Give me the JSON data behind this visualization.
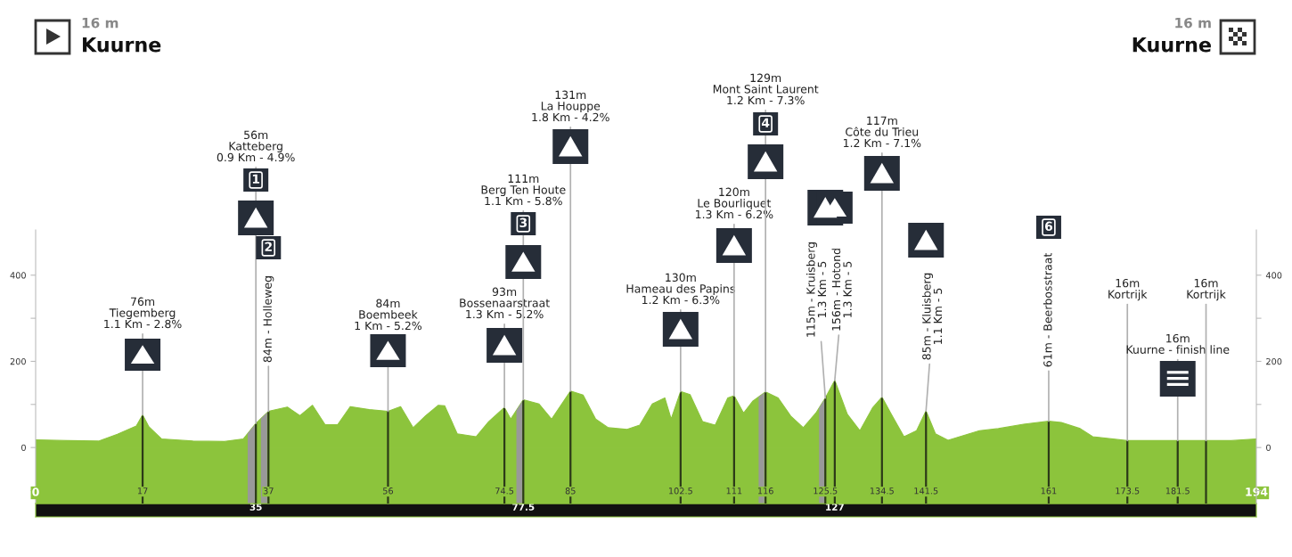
{
  "chart_data": {
    "type": "area",
    "x": [
      0,
      5,
      10,
      13,
      16,
      17,
      18,
      20,
      25,
      30,
      33,
      35,
      37,
      40,
      42,
      44,
      46,
      48,
      50,
      53,
      56,
      58,
      60,
      62,
      64,
      65,
      67,
      70,
      72,
      74.5,
      75.5,
      77.5,
      80,
      82,
      85,
      87,
      89,
      91,
      94,
      96,
      98,
      100,
      101,
      102.5,
      104,
      106,
      108,
      110,
      111,
      112.5,
      114,
      116,
      118,
      120,
      122,
      124,
      125.5,
      127,
      129,
      131,
      133,
      134.5,
      136,
      138,
      140,
      141.5,
      143,
      145,
      150,
      153,
      157,
      161,
      163,
      166,
      168,
      173.5,
      181.5,
      186,
      190,
      194
    ],
    "series": [
      {
        "color": "#8cc43c",
        "values": [
          18,
          16,
          15,
          31,
          50,
          76,
          48,
          20,
          15,
          14,
          20,
          56,
          84,
          94,
          74,
          98,
          53,
          53,
          95,
          88,
          84,
          95,
          46,
          74,
          98,
          97,
          32,
          25,
          60,
          93,
          66,
          111,
          101,
          66,
          131,
          122,
          66,
          46,
          42,
          52,
          101,
          115,
          66,
          130,
          123,
          60,
          52,
          115,
          120,
          80,
          108,
          129,
          115,
          73,
          46,
          80,
          115,
          156,
          77,
          39,
          92,
          117,
          77,
          25,
          39,
          85,
          32,
          17,
          39,
          44,
          54,
          61,
          58,
          44,
          25,
          16,
          16,
          16,
          16,
          20
        ]
      }
    ],
    "xlim": [
      0,
      194
    ],
    "xticks": [
      0,
      17,
      37,
      56,
      74.5,
      85,
      102.5,
      111,
      116,
      125.5,
      134.5,
      141.5,
      161,
      173.5,
      181.5,
      194
    ],
    "x2lim": [
      0,
      194
    ],
    "x2ticks": [
      35,
      77.5,
      127
    ],
    "ylim": [
      -130,
      505
    ],
    "yticks": [
      {
        "value": -100,
        "label": null
      },
      0,
      {
        "value": 100,
        "label": null
      },
      200,
      {
        "value": 300,
        "label": null
      },
      400
    ],
    "y2lim": [
      -130,
      505
    ],
    "y2ticks": [
      {
        "value": -100,
        "label": null
      },
      0,
      {
        "value": 100,
        "label": null
      },
      200,
      {
        "value": 300,
        "label": null
      },
      400
    ],
    "ref_lines": [
      {
        "axis": "x",
        "value": 17,
        "color": "#2c3a18"
      },
      {
        "axis": "x",
        "value": 35,
        "color": "#2c3a18"
      },
      {
        "axis": "x",
        "value": 37,
        "color": "#2c3a18"
      },
      {
        "axis": "x",
        "value": 56,
        "color": "#2c3a18"
      },
      {
        "axis": "x",
        "value": 74.5,
        "color": "#2c3a18"
      },
      {
        "axis": "x",
        "value": 77.5,
        "color": "#2c3a18"
      },
      {
        "axis": "x",
        "value": 85,
        "color": "#2c3a18"
      },
      {
        "axis": "x",
        "value": 102.5,
        "color": "#2c3a18"
      },
      {
        "axis": "x",
        "value": 111,
        "color": "#2c3a18"
      },
      {
        "axis": "x",
        "value": 116,
        "color": "#2c3a18"
      },
      {
        "axis": "x",
        "value": 125.5,
        "color": "#2c3a18"
      },
      {
        "axis": "x",
        "value": 127,
        "color": "#2c3a18"
      },
      {
        "axis": "x",
        "value": 134.5,
        "color": "#2c3a18"
      },
      {
        "axis": "x",
        "value": 141.5,
        "color": "#2c3a18"
      },
      {
        "axis": "x",
        "value": 161,
        "color": "#2c3a18"
      },
      {
        "axis": "x",
        "value": 173.5,
        "color": "#2c3a18"
      },
      {
        "axis": "x",
        "value": 181.5,
        "color": "#2c3a18"
      },
      {
        "axis": "x",
        "value": 186,
        "color": "#2c3a18"
      }
    ],
    "bands": [
      {
        "axis": "y",
        "from": -130,
        "to": 0,
        "color": "#8cc43c"
      },
      {
        "axis": "x",
        "from": 33.7,
        "to": 34.9,
        "color": "#999999"
      },
      {
        "axis": "x",
        "from": 35.8,
        "to": 36.8,
        "color": "#999999"
      },
      {
        "axis": "x",
        "from": 76.4,
        "to": 77.4,
        "color": "#999999"
      },
      {
        "axis": "x",
        "from": 114.9,
        "to": 115.8,
        "color": "#999999"
      },
      {
        "axis": "x",
        "from": 124.5,
        "to": 125.4,
        "color": "#999999"
      }
    ],
    "annotations": [
      {
        "text": "76m\nTiegemberg\n1.1 Km - 2.8%",
        "x": 17,
        "y": 76
      },
      {
        "text": "56m\nKatteberg\n0.9 Km - 4.9%",
        "x": 35,
        "y": 56
      },
      {
        "text": "84m - Holleweg",
        "x": 37,
        "y": 84
      },
      {
        "text": "84m\nBoembeek\n1 Km - 5.2%",
        "x": 56,
        "y": 84
      },
      {
        "text": "93m\nBossenaarstraat\n1.3 Km - 5.2%",
        "x": 74.5,
        "y": 93
      },
      {
        "text": "111m\nBerg Ten Houte\n1.1 Km - 5.8%",
        "x": 77.5,
        "y": 111
      },
      {
        "text": "131m\nLa Houppe\n1.8 Km - 4.2%",
        "x": 85,
        "y": 131
      },
      {
        "text": "130m\nHameau des Papins\n1.2 Km - 6.3%",
        "x": 102.5,
        "y": 130
      },
      {
        "text": "120m\nLe Bourliquet\n1.3 Km - 6.2%",
        "x": 111,
        "y": 120
      },
      {
        "text": "129m\nMont Saint Laurent\n1.2 Km - 7.3%",
        "x": 116,
        "y": 129
      },
      {
        "text": "115m - Kruisberg\n1.3 Km - 5",
        "x": 125.5,
        "y": 115
      },
      {
        "text": "156m - Hotond\n1.3 Km - 5",
        "x": 127,
        "y": 156
      },
      {
        "text": "117m\nCôte du Trieu\n1.2 Km - 7.1%",
        "x": 134.5,
        "y": 117
      },
      {
        "text": "85m - Kluisberg\n1.1 Km - 5",
        "x": 141.5,
        "y": 85
      },
      {
        "text": "61m - Beerbosstraat",
        "x": 161,
        "y": 61
      },
      {
        "text": "16m\nKortrijk",
        "x": 173.5,
        "y": 16
      },
      {
        "text": "16m\nKuurne - finish line",
        "x": 181.5,
        "y": 16
      },
      {
        "text": "16m\nKortrijk",
        "x": 186,
        "y": 16
      },
      "1",
      "2",
      "3",
      "4",
      "6",
      "16 m",
      "Kuurne",
      "16 m",
      "Kuurne"
    ]
  }
}
